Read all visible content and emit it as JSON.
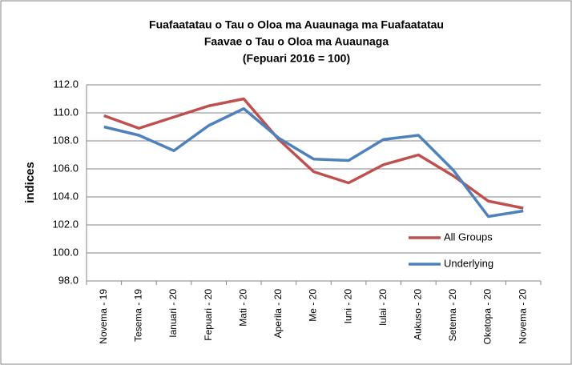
{
  "chart_data": {
    "type": "line",
    "title": [
      "Fuafaatatau o Tau o Oloa ma Auaunaga ma Fuafaatatau",
      "Faavae o Tau o Oloa ma Auaunaga",
      "(Fepuari 2016 = 100)"
    ],
    "y_label": "indices",
    "categories": [
      "Novema - 19",
      "Tesema - 19",
      "Ianuari - 20",
      "Fepuari - 20",
      "Mati - 20",
      "Aperila - 20",
      "Me - 20",
      "Iuni - 20",
      "Iulai - 20",
      "Aukuso - 20",
      "Setema - 20",
      "Oketopa - 20",
      "Novema - 20"
    ],
    "series": [
      {
        "name": "All Groups",
        "color": "#c0504d",
        "values": [
          109.8,
          108.9,
          109.7,
          110.5,
          111.0,
          108.1,
          105.8,
          105.0,
          106.3,
          107.0,
          105.5,
          103.7,
          103.2
        ]
      },
      {
        "name": "Underlying",
        "color": "#4f81bd",
        "values": [
          109.0,
          108.4,
          107.3,
          109.1,
          110.3,
          108.2,
          106.7,
          106.6,
          108.1,
          108.4,
          105.9,
          102.6,
          103.0
        ]
      }
    ],
    "ylim": [
      98,
      112
    ],
    "yticks": [
      {
        "value": 98,
        "label": "98.0"
      },
      {
        "value": 100,
        "label": "100.0"
      },
      {
        "value": 102,
        "label": "102.0"
      },
      {
        "value": 104,
        "label": "104.0"
      },
      {
        "value": 106,
        "label": "106.0"
      },
      {
        "value": 108,
        "label": "108.0"
      },
      {
        "value": 110,
        "label": "110.0"
      },
      {
        "value": 112,
        "label": "112.0"
      }
    ],
    "grid": true,
    "legend": "lower right"
  }
}
